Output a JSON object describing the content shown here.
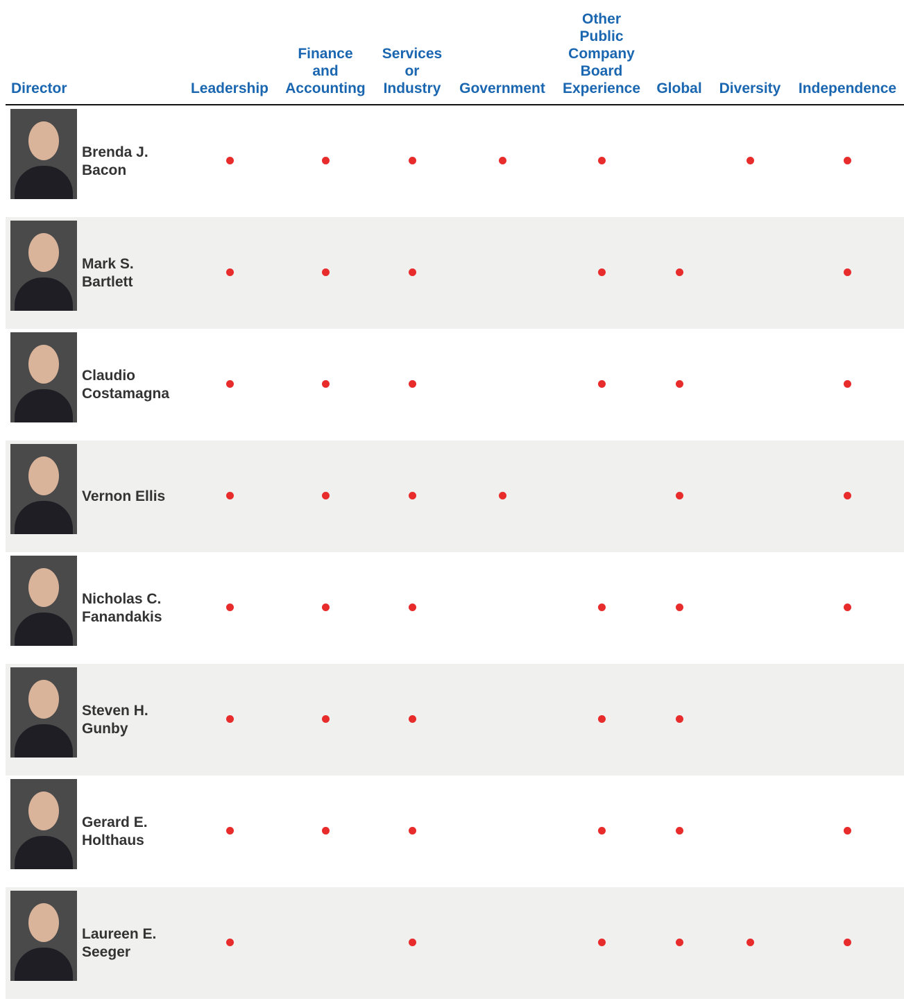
{
  "table": {
    "columns": [
      "Director",
      "Leadership",
      "Finance and Accounting",
      "Services or Industry",
      "Government",
      "Other Public Company Board Experience",
      "Global",
      "Diversity",
      "Independence"
    ],
    "rows": [
      {
        "name": "Brenda J. Bacon",
        "skills": [
          true,
          true,
          true,
          true,
          true,
          false,
          true,
          true
        ]
      },
      {
        "name": "Mark S. Bartlett",
        "skills": [
          true,
          true,
          true,
          false,
          true,
          true,
          false,
          true
        ]
      },
      {
        "name": "Claudio Costamagna",
        "skills": [
          true,
          true,
          true,
          false,
          true,
          true,
          false,
          true
        ]
      },
      {
        "name": "Vernon Ellis",
        "skills": [
          true,
          true,
          true,
          true,
          false,
          true,
          false,
          true
        ]
      },
      {
        "name": "Nicholas C. Fanandakis",
        "skills": [
          true,
          true,
          true,
          false,
          true,
          true,
          false,
          true
        ]
      },
      {
        "name": "Steven H. Gunby",
        "skills": [
          true,
          true,
          true,
          false,
          true,
          true,
          false,
          false
        ]
      },
      {
        "name": "Gerard E. Holthaus",
        "skills": [
          true,
          true,
          true,
          false,
          true,
          true,
          false,
          true
        ]
      },
      {
        "name": "Laureen E. Seeger",
        "skills": [
          true,
          false,
          true,
          false,
          true,
          true,
          true,
          true
        ]
      }
    ]
  }
}
